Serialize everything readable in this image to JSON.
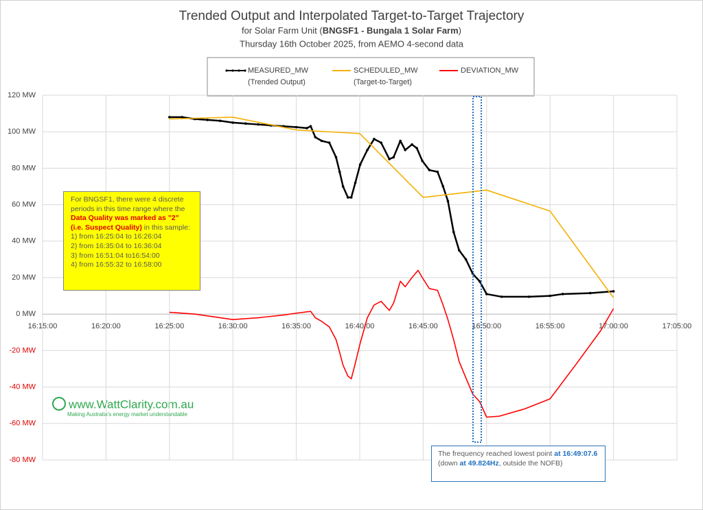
{
  "chart_data": {
    "type": "line",
    "title": "Trended Output and Interpolated Target-to-Target Trajectory",
    "subtitle_parts": [
      "for Solar Farm Unit (",
      "BNGSF1 - Bungala 1 Solar Farm",
      ")"
    ],
    "subtitle2": "Thursday 16th October 2025, from AEMO 4-second data",
    "xlim": [
      "16:15:00",
      "17:05:00"
    ],
    "xticks": [
      "16:15:00",
      "16:20:00",
      "16:25:00",
      "16:30:00",
      "16:35:00",
      "16:40:00",
      "16:45:00",
      "16:50:00",
      "16:55:00",
      "17:00:00",
      "17:05:00"
    ],
    "ylim": [
      -80,
      120
    ],
    "yticks": [
      {
        "value": -80,
        "label": "-80 MW"
      },
      {
        "value": -60,
        "label": "-60 MW"
      },
      {
        "value": -40,
        "label": "-40 MW"
      },
      {
        "value": -20,
        "label": "-20 MW"
      },
      {
        "value": 0,
        "label": "0 MW"
      },
      {
        "value": 20,
        "label": "20 MW"
      },
      {
        "value": 40,
        "label": "40 MW"
      },
      {
        "value": 60,
        "label": "60 MW"
      },
      {
        "value": 80,
        "label": "80 MW"
      },
      {
        "value": 100,
        "label": "100 MW"
      },
      {
        "value": 120,
        "label": "120 MW"
      }
    ],
    "grid": true,
    "negative_label_color": "#e00000",
    "series": [
      {
        "name": "MEASURED_MW",
        "description": "(Trended Output)",
        "color": "#000000",
        "markers": true,
        "x": [
          "16:25:00",
          "16:26:00",
          "16:27:00",
          "16:28:00",
          "16:29:00",
          "16:30:00",
          "16:31:00",
          "16:32:00",
          "16:33:00",
          "16:34:00",
          "16:35:00",
          "16:35:50",
          "16:36:08",
          "16:36:30",
          "16:37:00",
          "16:37:36",
          "16:38:08",
          "16:38:25",
          "16:38:41",
          "16:39:04",
          "16:39:20",
          "16:39:39",
          "16:40:02",
          "16:40:36",
          "16:41:08",
          "16:41:41",
          "16:42:20",
          "16:42:40",
          "16:43:12",
          "16:43:35",
          "16:44:07",
          "16:44:30",
          "16:44:56",
          "16:45:29",
          "16:46:08",
          "16:46:34",
          "16:46:57",
          "16:47:24",
          "16:47:50",
          "16:48:22",
          "16:48:55",
          "16:49:27",
          "16:50:00",
          "16:51:11",
          "16:53:21",
          "16:55:00",
          "16:56:00",
          "16:58:10",
          "17:00:00"
        ],
        "values": [
          108,
          108,
          107,
          106.5,
          106,
          105,
          104.5,
          104,
          103.5,
          103,
          102.5,
          102,
          103,
          97,
          95,
          94,
          86,
          78,
          70,
          64,
          64,
          72,
          82,
          90,
          96,
          94,
          85,
          86,
          95,
          90,
          93,
          91,
          84,
          79,
          78,
          70,
          62,
          45,
          35,
          30,
          22,
          18,
          11,
          9.5,
          9.5,
          10,
          11,
          11.5,
          12.5
        ]
      },
      {
        "name": "SCHEDULED_MW",
        "description": "(Target-to-Target)",
        "color": "#f5b000",
        "markers": false,
        "x": [
          "16:25:00",
          "16:30:00",
          "16:35:00",
          "16:40:00",
          "16:45:00",
          "16:50:00",
          "16:55:00",
          "17:00:00"
        ],
        "values": [
          107,
          108,
          101,
          99,
          64,
          68,
          56.5,
          9
        ]
      },
      {
        "name": "DEVIATION_MW",
        "color": "#ff0000",
        "markers": false,
        "x": [
          "16:25:00",
          "16:27:00",
          "16:28:30",
          "16:30:00",
          "16:32:00",
          "16:34:00",
          "16:35:00",
          "16:36:08",
          "16:36:30",
          "16:37:00",
          "16:37:36",
          "16:38:08",
          "16:38:25",
          "16:38:41",
          "16:39:04",
          "16:39:20",
          "16:39:39",
          "16:40:02",
          "16:40:36",
          "16:41:08",
          "16:41:41",
          "16:42:20",
          "16:42:40",
          "16:43:12",
          "16:43:35",
          "16:44:07",
          "16:44:36",
          "16:44:56",
          "16:45:29",
          "16:46:08",
          "16:46:34",
          "16:46:57",
          "16:47:24",
          "16:47:50",
          "16:48:22",
          "16:48:55",
          "16:49:27",
          "16:50:00",
          "16:51:00",
          "16:53:00",
          "16:55:00",
          "16:57:00",
          "16:59:00",
          "17:00:00"
        ],
        "values": [
          1,
          0,
          -1.5,
          -3,
          -2,
          -0.5,
          0.5,
          1.5,
          -2,
          -4,
          -7,
          -14,
          -21,
          -28,
          -34,
          -35.5,
          -27,
          -16,
          -2,
          5,
          7,
          2,
          6,
          18,
          15,
          20,
          24,
          20,
          14,
          13,
          5,
          -3,
          -14,
          -26,
          -35,
          -44,
          -48,
          -56.5,
          -56,
          -52,
          -46.5,
          -28,
          -9,
          3
        ]
      }
    ],
    "note": {
      "intro": "For BNGSF1, there were 4 discrete periods in this time range where the",
      "highlight": "Data Quality was marked as \"2\" (i.e. Suspect Quality)",
      "outro": "in this sample:",
      "periods": [
        "1) from 16:25:04 to 16:26:04",
        "2) from 16:35:04 to 16:36:04",
        "3) from 16:51:04 to16:54:00",
        "4) from 16:55:32 to 16:58:00"
      ]
    },
    "callout": {
      "part1": "The frequency reached lowest point",
      "time": "at 16:49:07.6",
      "part2": "(down",
      "freq": "at 49.824Hz",
      "part3": ", outside the NOFB)"
    },
    "watermark": {
      "site": "www.WattClarity.com.au",
      "tagline": "Making Australia's energy market understandable"
    }
  }
}
